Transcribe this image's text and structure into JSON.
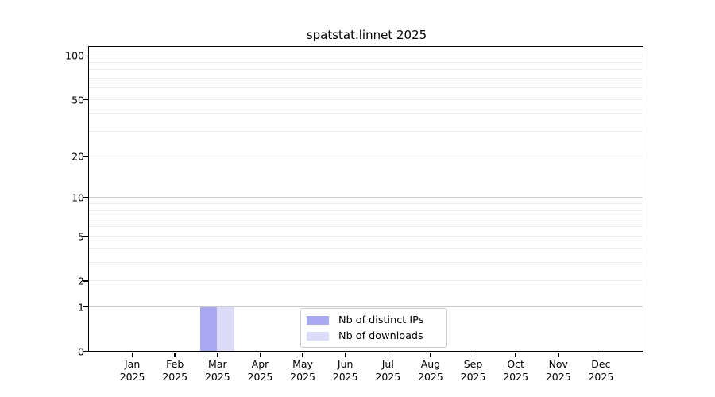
{
  "chart_data": {
    "type": "bar",
    "title": "spatstat.linnet 2025",
    "categories": [
      "Jan",
      "Feb",
      "Mar",
      "Apr",
      "May",
      "Jun",
      "Jul",
      "Aug",
      "Sep",
      "Oct",
      "Nov",
      "Dec"
    ],
    "x_tick_year": "2025",
    "series": [
      {
        "name": "Nb of distinct IPs",
        "color": "#a9a9f1",
        "values": [
          0,
          0,
          1,
          0,
          0,
          0,
          0,
          0,
          0,
          0,
          0,
          0
        ]
      },
      {
        "name": "Nb of downloads",
        "color": "#dcdcf8",
        "values": [
          0,
          0,
          1,
          0,
          0,
          0,
          0,
          0,
          0,
          0,
          0,
          0
        ]
      }
    ],
    "y_scale": "log10(1+y)",
    "y_ticks": [
      0,
      1,
      2,
      5,
      10,
      20,
      50,
      100
    ],
    "y_top": 114,
    "ylim": [
      0,
      114
    ],
    "grid": "horizontal",
    "grid_major_values": [
      1,
      10,
      100
    ],
    "grid_minor_values": [
      2,
      3,
      4,
      5,
      6,
      7,
      8,
      9,
      20,
      30,
      40,
      50,
      60,
      70,
      80,
      90
    ],
    "legend_position": "bottom-center",
    "colors": {
      "grid_major": "#cccccc",
      "grid_minor": "#ededed",
      "axis": "#000000",
      "legend_border": "#cccccc",
      "background": "#ffffff"
    }
  }
}
